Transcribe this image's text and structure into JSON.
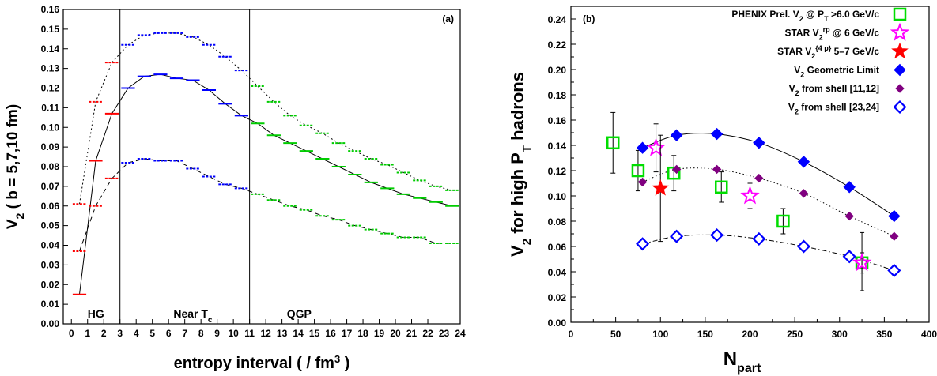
{
  "chart_data": [
    {
      "id": "a",
      "type": "line",
      "panel_label": "(a)",
      "xlabel": "entropy interval ( / fm",
      "xlabel_exp": "3",
      "xlabel_close": " )",
      "ylabel": "V",
      "ylabel_sub": "2",
      "ylabel_rest": " ( b = 5,7,10 fm)",
      "xlim": [
        -0.5,
        24
      ],
      "ylim": [
        0,
        0.16
      ],
      "xticks": [
        0,
        1,
        2,
        3,
        4,
        5,
        6,
        7,
        8,
        9,
        10,
        11,
        12,
        13,
        14,
        15,
        16,
        17,
        18,
        19,
        20,
        21,
        22,
        23,
        24
      ],
      "yticks": [
        0,
        0.01,
        0.02,
        0.03,
        0.04,
        0.05,
        0.06,
        0.07,
        0.08,
        0.09,
        0.1,
        0.11,
        0.12,
        0.13,
        0.14,
        0.15,
        0.16
      ],
      "grid": false,
      "phase_boundaries": [
        3,
        11
      ],
      "regions": [
        {
          "label": "HG",
          "x": 1.0
        },
        {
          "label": "Near T",
          "sub": "c",
          "x": 6.3
        },
        {
          "label": "QGP",
          "x": 13.3
        }
      ],
      "segment_colors": {
        "hg": "#ff0000",
        "near_tc": "#0000ff",
        "qgp": "#00cc00"
      },
      "series": [
        {
          "b": 5,
          "style": "dashed",
          "x": [
            0.5,
            1.5,
            2.5,
            3.5,
            4.5,
            5.5,
            6.5,
            7.5,
            8.5,
            9.5,
            10.5,
            11.5,
            12.5,
            13.5,
            14.5,
            15.5,
            16.5,
            17.5,
            18.5,
            19.5,
            20.5,
            21.5,
            22.5,
            23.5
          ],
          "y": [
            0.061,
            0.113,
            0.133,
            0.142,
            0.147,
            0.148,
            0.148,
            0.146,
            0.142,
            0.136,
            0.129,
            0.121,
            0.113,
            0.106,
            0.101,
            0.097,
            0.092,
            0.088,
            0.084,
            0.081,
            0.077,
            0.073,
            0.07,
            0.068
          ]
        },
        {
          "b": 7,
          "style": "solid",
          "x": [
            0.5,
            1.5,
            2.5,
            3.5,
            4.5,
            5.5,
            6.5,
            7.5,
            8.5,
            9.5,
            10.5,
            11.5,
            12.5,
            13.5,
            14.5,
            15.5,
            16.5,
            17.5,
            18.5,
            19.5,
            20.5,
            21.5,
            22.5,
            23.5
          ],
          "y": [
            0.015,
            0.083,
            0.107,
            0.12,
            0.126,
            0.127,
            0.125,
            0.124,
            0.119,
            0.112,
            0.106,
            0.102,
            0.096,
            0.092,
            0.088,
            0.084,
            0.08,
            0.076,
            0.072,
            0.069,
            0.066,
            0.064,
            0.062,
            0.06
          ]
        },
        {
          "b": 10,
          "style": "longdash",
          "x": [
            0.5,
            1.5,
            2.5,
            3.5,
            4.5,
            5.5,
            6.5,
            7.5,
            8.5,
            9.5,
            10.5,
            11.5,
            12.5,
            13.5,
            14.5,
            15.5,
            16.5,
            17.5,
            18.5,
            19.5,
            20.5,
            21.5,
            22.5,
            23.5
          ],
          "y": [
            0.037,
            0.06,
            0.074,
            0.082,
            0.084,
            0.083,
            0.083,
            0.079,
            0.075,
            0.071,
            0.069,
            0.066,
            0.063,
            0.06,
            0.058,
            0.055,
            0.053,
            0.05,
            0.048,
            0.046,
            0.044,
            0.044,
            0.041,
            0.041
          ]
        }
      ]
    },
    {
      "id": "b",
      "type": "scatter",
      "panel_label": "(b)",
      "xlabel": "N",
      "xlabel_sub": "part",
      "ylabel": "V",
      "ylabel_sub": "2",
      "ylabel_rest": " for high P",
      "ylabel_sub2": "T",
      "ylabel_end": " hadrons",
      "xlim": [
        0,
        400
      ],
      "ylim": [
        0,
        0.25
      ],
      "xticks": [
        0,
        50,
        100,
        150,
        200,
        250,
        300,
        350,
        400
      ],
      "yticks": [
        0,
        0.02,
        0.04,
        0.06,
        0.08,
        0.1,
        0.12,
        0.14,
        0.16,
        0.18,
        0.2,
        0.22,
        0.24
      ],
      "grid": false,
      "legend_position": "top-right",
      "series": [
        {
          "legend_parts": [
            [
              "PHENIX Prel. V"
            ],
            [
              "2",
              "sub"
            ],
            [
              " @ P"
            ],
            [
              "T",
              "sub"
            ],
            [
              " >6.0 GeV/c"
            ]
          ],
          "marker": "open-square",
          "color": "#00dd00",
          "points": [
            [
              47,
              0.142
            ],
            [
              75,
              0.12
            ],
            [
              115,
              0.118
            ],
            [
              168,
              0.107
            ],
            [
              237,
              0.08
            ],
            [
              325,
              0.047
            ]
          ],
          "yerr": [
            [
              0.024,
              0.024
            ],
            [
              0.016,
              0.016
            ],
            [
              0.014,
              0.014
            ],
            [
              0.012,
              0.012
            ],
            [
              0.01,
              0.01
            ],
            [
              0.024,
              0.022
            ]
          ]
        },
        {
          "legend_parts": [
            [
              "STAR V"
            ],
            [
              "2",
              "sub"
            ],
            [
              "rp",
              "sup"
            ],
            [
              " @ 6 GeV/c"
            ]
          ],
          "marker": "open-star",
          "color": "#ff00ff",
          "points": [
            [
              95,
              0.138
            ],
            [
              200,
              0.1
            ],
            [
              325,
              0.047
            ]
          ],
          "yerr": [
            [
              0.019,
              0.019
            ],
            [
              0.01,
              0.01
            ],
            [
              0.008,
              0.008
            ]
          ]
        },
        {
          "legend_parts": [
            [
              "STAR V"
            ],
            [
              "2",
              "sub"
            ],
            [
              "{4 p}",
              "sup"
            ],
            [
              " 5–7 GeV/c"
            ]
          ],
          "marker": "filled-star",
          "color": "#ff0000",
          "points": [
            [
              100,
              0.106
            ]
          ],
          "yerr": [
            [
              0.042,
              0.042
            ]
          ]
        },
        {
          "legend_parts": [
            [
              "V"
            ],
            [
              "2",
              "sub"
            ],
            [
              " Geometric  Limit"
            ]
          ],
          "marker": "filled-diamond",
          "color": "#0000ff",
          "line": "solid",
          "points": [
            [
              80,
              0.138
            ],
            [
              118,
              0.148
            ],
            [
              163,
              0.149
            ],
            [
              210,
              0.142
            ],
            [
              260,
              0.127
            ],
            [
              311,
              0.107
            ],
            [
              361,
              0.084
            ]
          ]
        },
        {
          "legend_parts": [
            [
              "V"
            ],
            [
              "2",
              "sub"
            ],
            [
              " from shell [11,12]"
            ]
          ],
          "marker": "small-filled-diamond",
          "color": "#800080",
          "line": "dotted",
          "points": [
            [
              80,
              0.111
            ],
            [
              118,
              0.121
            ],
            [
              163,
              0.121
            ],
            [
              210,
              0.114
            ],
            [
              260,
              0.102
            ],
            [
              311,
              0.084
            ],
            [
              361,
              0.068
            ]
          ]
        },
        {
          "legend_parts": [
            [
              "V"
            ],
            [
              "2",
              "sub"
            ],
            [
              " from shell [23,24]"
            ]
          ],
          "marker": "open-diamond",
          "color": "#0000ff",
          "line": "dashdot",
          "points": [
            [
              80,
              0.062
            ],
            [
              118,
              0.068
            ],
            [
              163,
              0.069
            ],
            [
              210,
              0.066
            ],
            [
              260,
              0.06
            ],
            [
              311,
              0.052
            ],
            [
              361,
              0.041
            ]
          ]
        }
      ]
    }
  ]
}
